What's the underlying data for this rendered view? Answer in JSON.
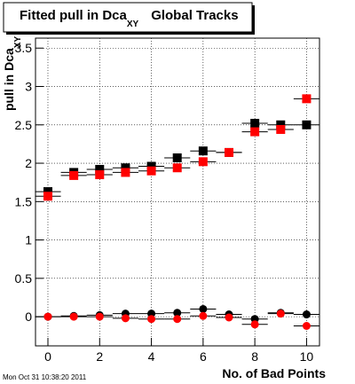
{
  "chart_data": {
    "type": "scatter",
    "title": {
      "text": "Fitted pull in Dca",
      "subscript": "XY",
      "suffix": "Global Tracks"
    },
    "y_label": {
      "text": "pull in Dca",
      "subscript": "XY"
    },
    "x_label": "No. of Bad Points",
    "footer": "Mon Oct 31 10:38:20 2011",
    "x": [
      0,
      1,
      2,
      3,
      4,
      5,
      6,
      7,
      8,
      9,
      10
    ],
    "xerr": 0.5,
    "series": [
      {
        "color": "#000000",
        "marker": "square",
        "values": [
          1.63,
          1.88,
          1.92,
          1.94,
          1.96,
          2.07,
          2.16,
          2.14,
          2.52,
          2.5,
          2.5
        ]
      },
      {
        "color": "#ff0000",
        "marker": "square",
        "values": [
          1.57,
          1.84,
          1.85,
          1.88,
          1.9,
          1.94,
          2.02,
          2.14,
          2.41,
          2.44,
          2.84
        ]
      },
      {
        "color": "#000000",
        "marker": "circle",
        "values": [
          0,
          0.01,
          0.02,
          0.04,
          0.04,
          0.05,
          0.1,
          0.03,
          -0.03,
          0.05,
          0.03
        ]
      },
      {
        "color": "#ff0000",
        "marker": "circle",
        "values": [
          0,
          0,
          0,
          -0.02,
          -0.03,
          -0.03,
          0.01,
          -0.01,
          -0.1,
          0.04,
          -0.12
        ]
      }
    ],
    "xlim": [
      -0.48,
      10.5
    ],
    "ylim": [
      -0.38,
      3.63
    ],
    "xticks": [
      0,
      2,
      4,
      6,
      8,
      10
    ],
    "yticks": [
      0,
      0.5,
      1,
      1.5,
      2,
      2.5,
      3,
      3.5
    ],
    "grid": true
  }
}
